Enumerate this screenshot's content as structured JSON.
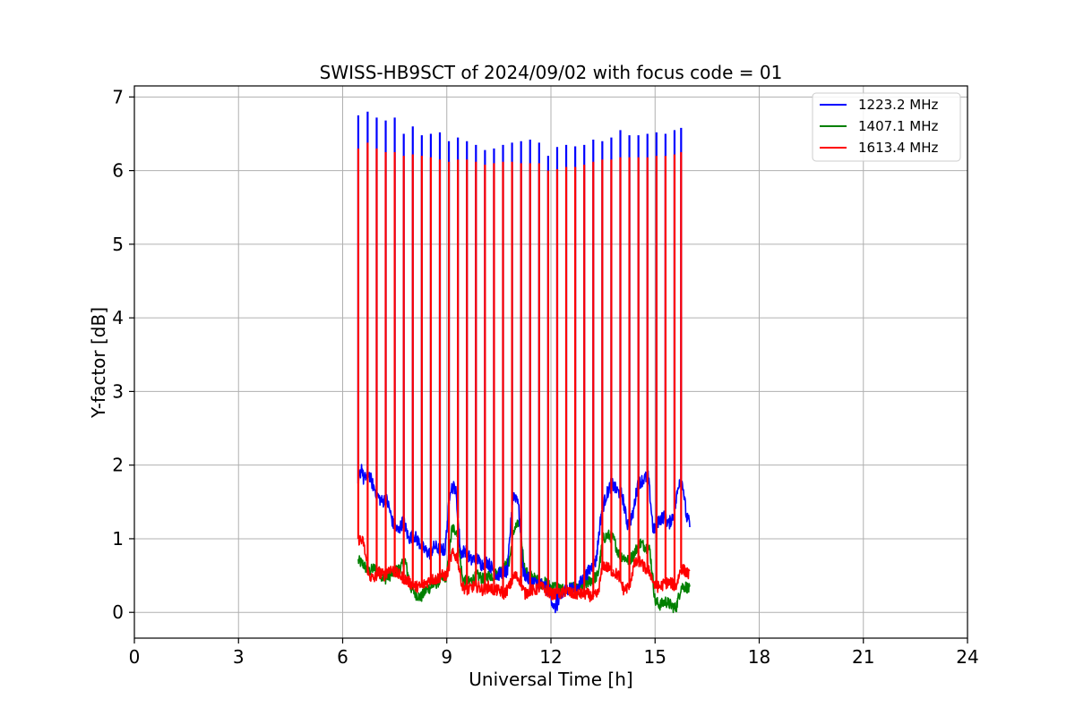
{
  "chart_data": {
    "type": "line",
    "title": "SWISS-HB9SCT of 2024/09/02 with focus code = 01",
    "xlabel": "Universal Time [h]",
    "ylabel": "Y-factor [dB]",
    "xlim": [
      0,
      24
    ],
    "ylim": [
      -0.35,
      7.15
    ],
    "xticks": [
      0,
      3,
      6,
      9,
      12,
      15,
      18,
      21,
      24
    ],
    "yticks": [
      0,
      1,
      2,
      3,
      4,
      5,
      6,
      7
    ],
    "grid": true,
    "legend_position": "top-right",
    "series": [
      {
        "name": "1223.2 MHz",
        "color": "#0000ff",
        "x": [
          6.45,
          6.55,
          6.6,
          6.7,
          6.75,
          6.85,
          6.95,
          7.05,
          7.15,
          7.25,
          7.35,
          7.45,
          7.6,
          7.75,
          7.9,
          8.05,
          8.2,
          8.35,
          8.5,
          8.65,
          8.8,
          8.95,
          9.1,
          9.25,
          9.4,
          9.55,
          9.7,
          9.85,
          10.0,
          10.15,
          10.3,
          10.45,
          10.6,
          10.75,
          10.9,
          11.05,
          11.2,
          11.35,
          11.5,
          11.65,
          11.8,
          11.95,
          12.1,
          12.25,
          12.4,
          12.55,
          12.7,
          12.85,
          13.0,
          13.15,
          13.3,
          13.45,
          13.6,
          13.75,
          13.9,
          14.05,
          14.2,
          14.35,
          14.5,
          14.65,
          14.8,
          14.95,
          15.1,
          15.25,
          15.4,
          15.55,
          15.7,
          15.8,
          15.9,
          16.0
        ],
        "y": [
          1.75,
          2.0,
          1.8,
          1.85,
          1.9,
          1.75,
          1.65,
          1.55,
          1.5,
          1.55,
          1.4,
          1.2,
          1.1,
          1.25,
          1.0,
          1.05,
          0.95,
          0.85,
          0.8,
          0.9,
          0.85,
          0.85,
          1.7,
          1.7,
          0.8,
          0.85,
          0.7,
          0.75,
          0.65,
          0.7,
          0.6,
          0.5,
          0.55,
          0.55,
          1.6,
          1.55,
          0.55,
          0.45,
          0.4,
          0.4,
          0.35,
          0.3,
          0.05,
          0.15,
          0.3,
          0.35,
          0.3,
          0.4,
          0.5,
          0.6,
          0.7,
          1.35,
          1.6,
          1.75,
          1.65,
          1.6,
          1.2,
          1.3,
          1.75,
          1.8,
          1.85,
          1.1,
          1.25,
          1.3,
          1.2,
          1.35,
          1.8,
          1.75,
          1.3,
          1.2
        ]
      },
      {
        "name": "1407.1 MHz",
        "color": "#008000",
        "x": [
          6.45,
          6.6,
          6.75,
          6.9,
          7.05,
          7.2,
          7.35,
          7.5,
          7.65,
          7.8,
          7.95,
          8.1,
          8.25,
          8.4,
          8.55,
          8.7,
          8.85,
          9.0,
          9.15,
          9.3,
          9.45,
          9.6,
          9.75,
          9.9,
          10.05,
          10.2,
          10.35,
          10.5,
          10.65,
          10.8,
          10.95,
          11.1,
          11.25,
          11.4,
          11.55,
          11.7,
          11.85,
          12.0,
          12.15,
          12.3,
          12.45,
          12.6,
          12.75,
          12.9,
          13.05,
          13.2,
          13.35,
          13.5,
          13.65,
          13.8,
          13.95,
          14.1,
          14.25,
          14.4,
          14.55,
          14.7,
          14.85,
          15.0,
          15.15,
          15.3,
          15.45,
          15.6,
          15.75,
          15.9,
          16.0
        ],
        "y": [
          0.7,
          0.65,
          0.55,
          0.6,
          0.55,
          0.45,
          0.5,
          0.55,
          0.6,
          0.7,
          0.35,
          0.25,
          0.2,
          0.3,
          0.35,
          0.4,
          0.45,
          0.5,
          1.15,
          1.1,
          0.45,
          0.4,
          0.45,
          0.5,
          0.45,
          0.5,
          0.5,
          0.55,
          0.6,
          0.7,
          1.15,
          1.2,
          0.55,
          0.5,
          0.45,
          0.4,
          0.4,
          0.35,
          0.35,
          0.3,
          0.3,
          0.35,
          0.3,
          0.35,
          0.4,
          0.45,
          0.5,
          1.0,
          1.05,
          1.0,
          0.8,
          0.75,
          0.7,
          0.8,
          0.95,
          0.9,
          0.85,
          0.15,
          0.1,
          0.15,
          0.1,
          0.05,
          0.35,
          0.35,
          0.3
        ]
      },
      {
        "name": "1613.4 MHz",
        "color": "#ff0000",
        "x": [
          6.45,
          6.6,
          6.75,
          6.9,
          7.05,
          7.2,
          7.35,
          7.5,
          7.65,
          7.8,
          7.95,
          8.1,
          8.25,
          8.4,
          8.55,
          8.7,
          8.85,
          9.0,
          9.15,
          9.3,
          9.45,
          9.6,
          9.75,
          9.9,
          10.05,
          10.2,
          10.35,
          10.5,
          10.65,
          10.8,
          10.95,
          11.1,
          11.25,
          11.4,
          11.55,
          11.7,
          11.85,
          12.0,
          12.15,
          12.3,
          12.45,
          12.6,
          12.75,
          12.9,
          13.05,
          13.2,
          13.35,
          13.5,
          13.65,
          13.8,
          13.95,
          14.1,
          14.25,
          14.4,
          14.55,
          14.7,
          14.85,
          15.0,
          15.15,
          15.3,
          15.45,
          15.6,
          15.75,
          15.9,
          16.0
        ],
        "y": [
          1.0,
          0.95,
          0.5,
          0.45,
          0.55,
          0.5,
          0.6,
          0.55,
          0.5,
          0.45,
          0.4,
          0.35,
          0.35,
          0.4,
          0.45,
          0.45,
          0.5,
          0.5,
          0.8,
          0.75,
          0.35,
          0.3,
          0.35,
          0.35,
          0.3,
          0.35,
          0.3,
          0.3,
          0.25,
          0.35,
          0.5,
          0.45,
          0.25,
          0.3,
          0.3,
          0.35,
          0.3,
          0.25,
          0.25,
          0.25,
          0.3,
          0.25,
          0.25,
          0.25,
          0.25,
          0.2,
          0.25,
          0.65,
          0.6,
          0.55,
          0.5,
          0.3,
          0.35,
          0.65,
          0.7,
          0.6,
          0.55,
          0.35,
          0.35,
          0.4,
          0.4,
          0.35,
          0.6,
          0.55,
          0.5
        ]
      }
    ],
    "calibration_spikes": {
      "x": [
        6.45,
        6.72,
        6.98,
        7.24,
        7.5,
        7.76,
        8.02,
        8.28,
        8.54,
        8.8,
        9.06,
        9.32,
        9.58,
        9.84,
        10.1,
        10.36,
        10.62,
        10.88,
        11.14,
        11.4,
        11.66,
        11.92,
        12.18,
        12.44,
        12.7,
        12.96,
        13.22,
        13.48,
        13.74,
        14.0,
        14.26,
        14.52,
        14.78,
        15.04,
        15.3,
        15.56,
        15.75
      ],
      "blue_peak": [
        6.75,
        6.8,
        6.72,
        6.68,
        6.72,
        6.5,
        6.6,
        6.48,
        6.5,
        6.52,
        6.4,
        6.45,
        6.4,
        6.35,
        6.28,
        6.3,
        6.35,
        6.38,
        6.4,
        6.42,
        6.38,
        6.2,
        6.32,
        6.35,
        6.33,
        6.35,
        6.42,
        6.4,
        6.45,
        6.55,
        6.48,
        6.48,
        6.5,
        6.52,
        6.5,
        6.55,
        6.58
      ],
      "red_peak": [
        6.3,
        6.38,
        6.3,
        6.25,
        6.25,
        6.2,
        6.22,
        6.2,
        6.18,
        6.15,
        6.12,
        6.15,
        6.15,
        6.12,
        6.08,
        6.1,
        6.12,
        6.12,
        6.1,
        6.1,
        6.1,
        6.0,
        6.02,
        6.05,
        6.05,
        6.08,
        6.12,
        6.15,
        6.15,
        6.18,
        6.18,
        6.18,
        6.18,
        6.2,
        6.2,
        6.22,
        6.25
      ]
    }
  }
}
